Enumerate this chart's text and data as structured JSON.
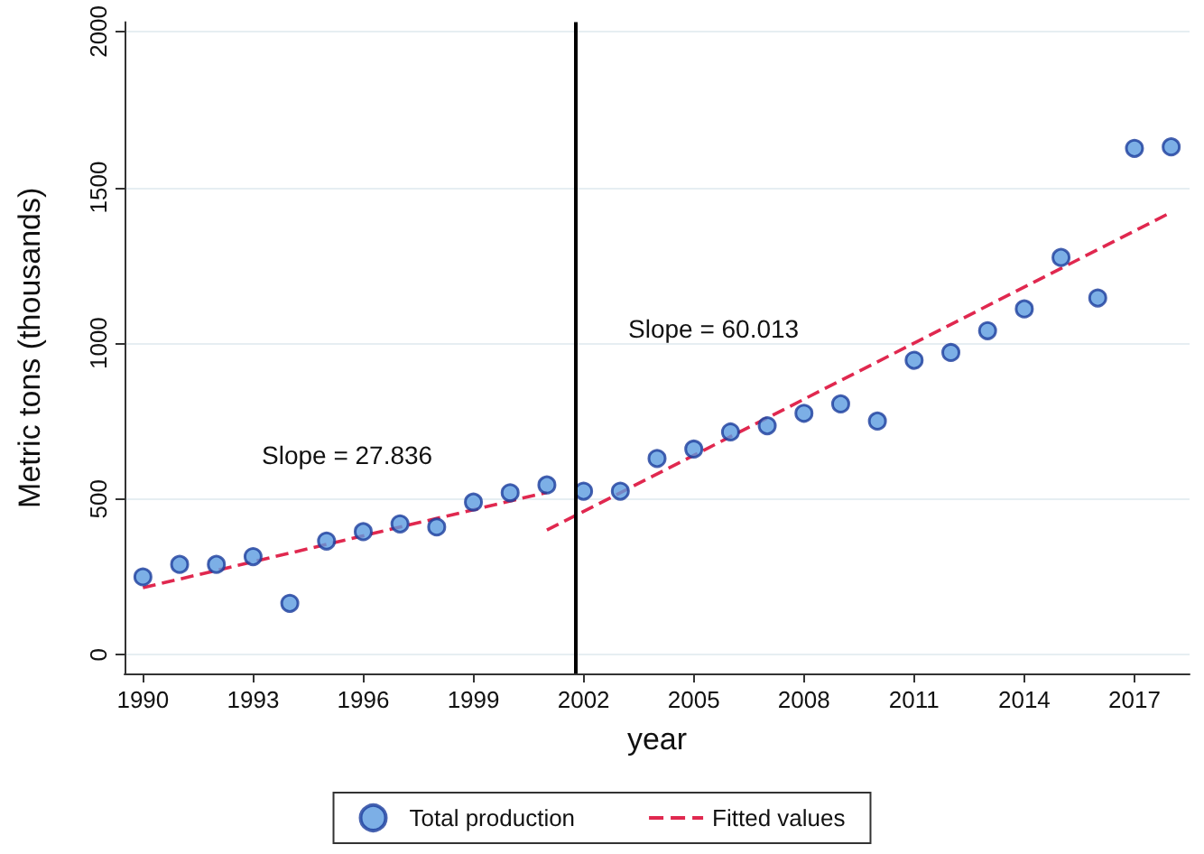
{
  "chart_data": {
    "type": "scatter",
    "xlabel": "year",
    "ylabel": "Metric tons (thousands)",
    "xlim": [
      1989.5,
      2018.5
    ],
    "xticks": [
      1990,
      1993,
      1996,
      1999,
      2002,
      2005,
      2008,
      2011,
      2014,
      2017
    ],
    "ylim": [
      -60,
      2030
    ],
    "yticks": [
      0,
      500,
      1000,
      1500,
      2000
    ],
    "grid": "y",
    "legend": "bottom",
    "series": [
      {
        "name": "Total production",
        "color": "#5b9be0",
        "marker": "circle",
        "x": [
          1990,
          1991,
          1992,
          1993,
          1994,
          1995,
          1996,
          1997,
          1998,
          1999,
          2000,
          2001,
          2002,
          2003,
          2004,
          2005,
          2006,
          2007,
          2008,
          2009,
          2010,
          2011,
          2012,
          2013,
          2014,
          2015,
          2016,
          2017,
          2018
        ],
        "values": [
          250,
          290,
          290,
          315,
          165,
          365,
          395,
          420,
          410,
          490,
          520,
          545,
          525,
          525,
          630,
          660,
          715,
          735,
          775,
          805,
          750,
          945,
          970,
          1040,
          1110,
          1275,
          1145,
          1625,
          1630
        ]
      },
      {
        "name": "Fitted values",
        "type": "line",
        "color": "#e0284f",
        "line_style": "dashed",
        "marker": "none",
        "x": [
          1990,
          2001
        ],
        "values": [
          215,
          521
        ]
      },
      {
        "type": "line",
        "color": "#e0284f",
        "line_style": "dashed",
        "marker": "none",
        "x": [
          2001,
          2018
        ],
        "values": [
          400,
          1420
        ]
      }
    ],
    "ref_lines": [
      {
        "axis": "x",
        "value": 2001.8,
        "color": "#000000",
        "line_style": "solid"
      }
    ],
    "annotations": [
      "Slope = 27.836",
      "Slope = 60.013"
    ]
  }
}
